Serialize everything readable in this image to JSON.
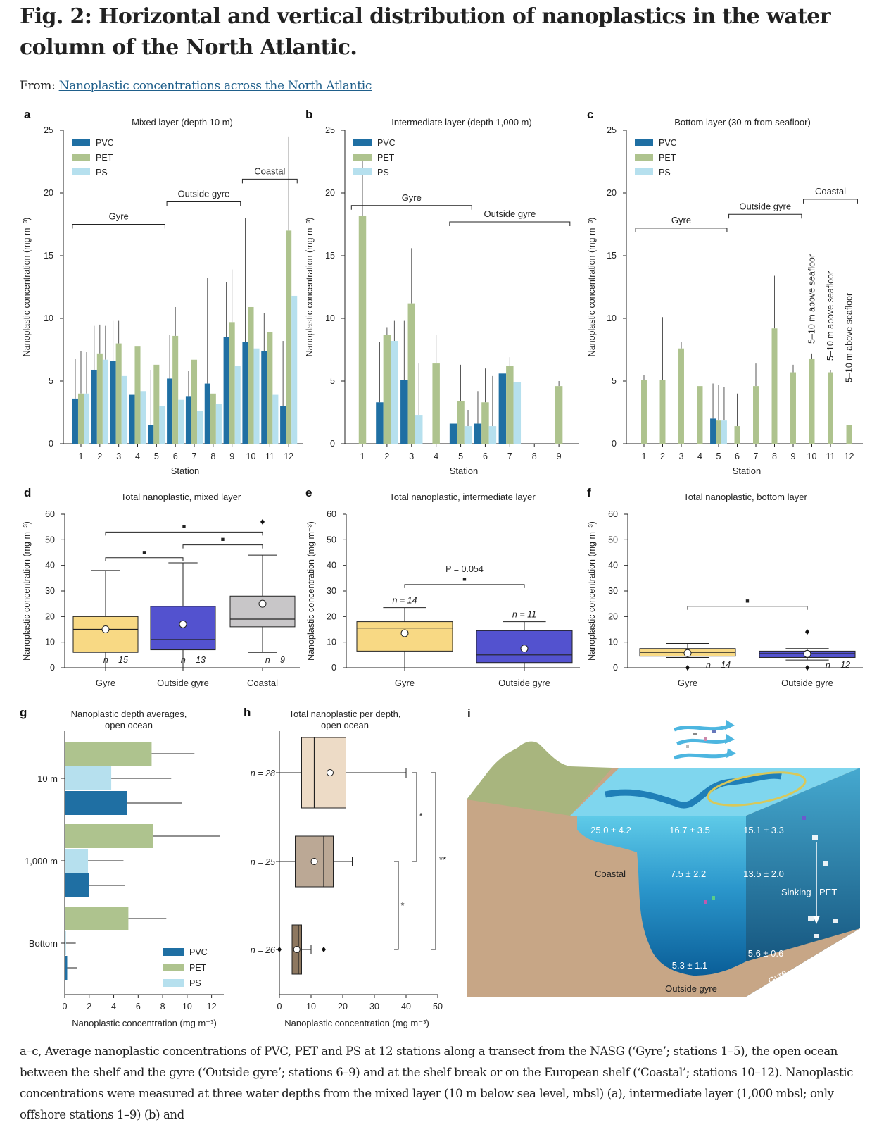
{
  "header": {
    "title": "Fig. 2: Horizontal and vertical distribution of nanoplastics in the water column of the North Atlantic.",
    "from_label": "From:",
    "from_link": "Nanoplastic concentrations across the North Atlantic"
  },
  "caption": "a–c, Average nanoplastic concentrations of PVC, PET and PS at 12 stations along a transect from the NASG (‘Gyre’; stations 1–5), the open ocean between the shelf and the gyre (‘Outside gyre’; stations 6–9) and at the shelf break or on the European shelf (‘Coastal’; stations 10–12). Nanoplastic concentrations were measured at three water depths from the mixed layer (10 m below sea level, mbsl) (a), intermediate layer (1,000 mbsl; only offshore stations 1–9) (b) and",
  "colors": {
    "PVC": "#1f6fa3",
    "PET": "#aec38e",
    "PS": "#b6e0ee"
  },
  "chart_data": [
    {
      "panel": "a",
      "type": "bar",
      "title": "Mixed layer (depth 10 m)",
      "xlabel": "Station",
      "ylabel": "Nanoplastic concentration (mg m⁻³)",
      "ylim": [
        0,
        25
      ],
      "yticks": [
        0,
        5,
        10,
        15,
        20,
        25
      ],
      "categories": [
        "1",
        "2",
        "3",
        "4",
        "5",
        "6",
        "7",
        "8",
        "9",
        "10",
        "11",
        "12"
      ],
      "legend": [
        "PVC",
        "PET",
        "PS"
      ],
      "series": [
        {
          "name": "PVC",
          "values": [
            3.6,
            5.9,
            6.6,
            3.9,
            1.5,
            5.2,
            3.8,
            4.8,
            8.5,
            8.1,
            7.4,
            3.0
          ],
          "error": [
            3.2,
            3.5,
            3.2,
            8.8,
            4.4,
            3.5,
            2.0,
            8.4,
            4.4,
            9.9,
            3.0,
            5.2
          ]
        },
        {
          "name": "PET",
          "values": [
            4.0,
            7.2,
            8.0,
            7.8,
            6.3,
            8.6,
            6.7,
            4.0,
            9.7,
            10.9,
            8.9,
            17.0
          ],
          "error": [
            3.4,
            2.3,
            1.8,
            0.0,
            0.0,
            2.3,
            0.0,
            0.0,
            4.2,
            8.1,
            0.0,
            7.5
          ]
        },
        {
          "name": "PS",
          "values": [
            4.0,
            6.7,
            5.4,
            4.2,
            3.0,
            3.5,
            2.6,
            3.2,
            6.2,
            7.6,
            3.9,
            11.8
          ],
          "error": [
            3.3,
            2.7,
            0.0,
            0.0,
            0.0,
            0.0,
            0.0,
            0.0,
            0.0,
            0.0,
            0.0,
            0.0
          ]
        }
      ],
      "brackets": [
        {
          "label": "Gyre",
          "y": 17.5,
          "from": "1",
          "to": "5"
        },
        {
          "label": "Outside gyre",
          "y": 19.3,
          "from": "6",
          "to": "9"
        },
        {
          "label": "Coastal",
          "y": 21.1,
          "from": "10",
          "to": "12"
        }
      ]
    },
    {
      "panel": "b",
      "type": "bar",
      "title": "Intermediate layer (depth 1,000 m)",
      "xlabel": "Station",
      "ylabel": "Nanoplastic concentration (mg m⁻³)",
      "ylim": [
        0,
        25
      ],
      "yticks": [
        0,
        5,
        10,
        15,
        20,
        25
      ],
      "categories": [
        "1",
        "2",
        "3",
        "4",
        "5",
        "6",
        "7",
        "8",
        "9"
      ],
      "legend": [
        "PVC",
        "PET",
        "PS"
      ],
      "series": [
        {
          "name": "PVC",
          "values": [
            0,
            3.3,
            5.1,
            0,
            1.6,
            1.6,
            5.6,
            0,
            0
          ],
          "error": [
            0,
            4.8,
            4.7,
            0,
            0,
            2.6,
            0,
            0,
            0
          ]
        },
        {
          "name": "PET",
          "values": [
            18.2,
            8.7,
            11.2,
            6.4,
            3.4,
            3.3,
            6.2,
            0,
            4.6
          ],
          "error": [
            4.8,
            0.6,
            4.4,
            2.3,
            2.9,
            2.7,
            0.7,
            0,
            0.4
          ]
        },
        {
          "name": "PS",
          "values": [
            0,
            8.2,
            2.3,
            0,
            1.4,
            1.4,
            4.9,
            0,
            0
          ],
          "error": [
            0,
            1.6,
            4.1,
            0,
            1.3,
            4.0,
            0,
            0,
            0
          ]
        }
      ],
      "brackets": [
        {
          "label": "Gyre",
          "y": 19.0,
          "from": "1",
          "to": "5"
        },
        {
          "label": "Outside gyre",
          "y": 17.7,
          "from": "5",
          "to": "9"
        }
      ]
    },
    {
      "panel": "c",
      "type": "bar",
      "title": "Bottom layer (30 m from seafloor)",
      "xlabel": "Station",
      "ylabel": "Nanoplastic concentration (mg m⁻³)",
      "ylim": [
        0,
        25
      ],
      "yticks": [
        0,
        5,
        10,
        15,
        20,
        25
      ],
      "categories": [
        "1",
        "2",
        "3",
        "4",
        "5",
        "6",
        "7",
        "8",
        "9",
        "10",
        "11",
        "12"
      ],
      "legend": [
        "PVC",
        "PET",
        "PS"
      ],
      "series": [
        {
          "name": "PVC",
          "values": [
            0,
            0,
            0,
            0,
            2.0,
            0,
            0,
            0,
            0,
            0,
            0,
            0
          ],
          "error": [
            0,
            0,
            0,
            0,
            2.8,
            0,
            0,
            0,
            0,
            0,
            0,
            0
          ]
        },
        {
          "name": "PET",
          "values": [
            5.1,
            5.1,
            7.6,
            4.6,
            1.9,
            1.4,
            4.6,
            9.2,
            5.7,
            6.8,
            5.7,
            1.5
          ],
          "error": [
            0.4,
            5.0,
            0.5,
            0.3,
            2.8,
            2.6,
            1.8,
            4.2,
            0.6,
            0.4,
            0.2,
            2.6
          ]
        },
        {
          "name": "PS",
          "values": [
            0,
            0,
            0,
            0,
            1.9,
            0,
            0,
            0,
            0,
            0,
            0,
            0
          ],
          "error": [
            0,
            0,
            0,
            0,
            2.6,
            0,
            0,
            0,
            0,
            0,
            0,
            0
          ]
        }
      ],
      "brackets": [
        {
          "label": "Gyre",
          "y": 17.2,
          "from": "1",
          "to": "5"
        },
        {
          "label": "Outside gyre",
          "y": 18.3,
          "from": "6",
          "to": "9"
        },
        {
          "label": "Coastal",
          "y": 19.5,
          "from": "10",
          "to": "12"
        }
      ],
      "annotations": [
        "5–10 m above seafloor",
        "5–10 m above seafloor",
        "5–10 m above seafloor"
      ]
    },
    {
      "panel": "d",
      "type": "box",
      "title": "Total nanoplastic, mixed layer",
      "ylabel": "Nanoplastic concentration (mg m⁻³)",
      "ylim": [
        0,
        60
      ],
      "yticks": [
        0,
        10,
        20,
        30,
        40,
        50,
        60
      ],
      "groups": [
        {
          "name": "Gyre",
          "n": "n = 15",
          "min": 0,
          "q1": 6,
          "median": 15,
          "q3": 20,
          "max": 38,
          "mean": 15,
          "outliers": [],
          "color": "#f8d984"
        },
        {
          "name": "Outside gyre",
          "n": "n = 13",
          "min": 0,
          "q1": 7,
          "median": 11,
          "q3": 24,
          "max": 41,
          "mean": 17,
          "outliers": [],
          "color": "#5352cf"
        },
        {
          "name": "Coastal",
          "n": "n = 9",
          "min": 6,
          "q1": 16,
          "median": 19,
          "q3": 28,
          "max": 44,
          "mean": 25,
          "outliers": [
            57
          ],
          "color": "#c8c6c8"
        }
      ],
      "significance": [
        {
          "from": "Gyre",
          "to": "Outside gyre",
          "y": 43,
          "label": "■"
        },
        {
          "from": "Outside gyre",
          "to": "Coastal",
          "y": 48,
          "label": "■"
        },
        {
          "from": "Gyre",
          "to": "Coastal",
          "y": 53,
          "label": "■"
        }
      ]
    },
    {
      "panel": "e",
      "type": "box",
      "title": "Total nanoplastic, intermediate layer",
      "ylabel": "Nanoplastic concentration (mg m⁻³)",
      "ylim": [
        0,
        60
      ],
      "yticks": [
        0,
        10,
        20,
        30,
        40,
        50,
        60
      ],
      "groups": [
        {
          "name": "Gyre",
          "n": "n = 14",
          "min": 0,
          "q1": 6.5,
          "median": 15.5,
          "q3": 18,
          "max": 23.5,
          "mean": 13.5,
          "outliers": [],
          "color": "#f8d984"
        },
        {
          "name": "Outside gyre",
          "n": "n = 11",
          "min": 0,
          "q1": 2,
          "median": 5,
          "q3": 14.5,
          "max": 18,
          "mean": 7.5,
          "outliers": [],
          "color": "#5352cf"
        }
      ],
      "significance": [
        {
          "from": "Gyre",
          "to": "Outside gyre",
          "y": 32.5,
          "label": "■",
          "note": "P = 0.054"
        }
      ]
    },
    {
      "panel": "f",
      "type": "box",
      "title": "Total nanoplastic, bottom layer",
      "ylabel": "Nanoplastic concentration (mg m⁻³)",
      "ylim": [
        0,
        60
      ],
      "yticks": [
        0,
        10,
        20,
        30,
        40,
        50,
        60
      ],
      "groups": [
        {
          "name": "Gyre",
          "n": "n = 14",
          "min": 4,
          "q1": 4.5,
          "median": 6,
          "q3": 7.5,
          "max": 9.5,
          "mean": 5.7,
          "outliers": [
            0
          ],
          "color": "#f8d984"
        },
        {
          "name": "Outside gyre",
          "n": "n = 12",
          "min": 3,
          "q1": 4,
          "median": 5.5,
          "q3": 6.5,
          "max": 7.5,
          "mean": 5.4,
          "outliers": [
            14,
            0
          ],
          "color": "#5352cf"
        }
      ],
      "significance": [
        {
          "from": "Gyre",
          "to": "Outside gyre",
          "y": 24,
          "label": "■"
        }
      ]
    },
    {
      "panel": "g",
      "type": "bar",
      "orientation": "horizontal",
      "title": "Nanoplastic depth averages, open ocean",
      "xlabel": "Nanoplastic concentration (mg m⁻³)",
      "xlim": [
        0,
        13
      ],
      "xticks": [
        0,
        2,
        4,
        6,
        8,
        10,
        12
      ],
      "categories": [
        "10 m",
        "1,000 m",
        "Bottom"
      ],
      "legend": [
        "PVC",
        "PET",
        "PS"
      ],
      "series": [
        {
          "name": "PET",
          "values": [
            7.1,
            7.2,
            5.2
          ],
          "error": [
            3.5,
            5.5,
            3.1
          ]
        },
        {
          "name": "PS",
          "values": [
            3.8,
            1.9,
            0.1
          ],
          "error": [
            4.9,
            2.9,
            0.8
          ]
        },
        {
          "name": "PVC",
          "values": [
            5.1,
            2.0,
            0.2
          ],
          "error": [
            4.5,
            2.9,
            0.8
          ]
        }
      ]
    },
    {
      "panel": "h",
      "type": "box",
      "orientation": "horizontal",
      "title": "Total nanoplastic per depth, open ocean",
      "xlabel": "Nanoplastic concentration (mg m⁻³)",
      "xlim": [
        0,
        50
      ],
      "xticks": [
        0,
        10,
        20,
        30,
        40,
        50
      ],
      "groups": [
        {
          "name": "n = 28",
          "min": 0,
          "q1": 7,
          "median": 11,
          "q3": 21,
          "max": 40,
          "mean": 16,
          "outliers": [],
          "color": "#eddbc6"
        },
        {
          "name": "n = 25",
          "min": 0,
          "q1": 5,
          "median": 14,
          "q3": 17,
          "max": 23,
          "mean": 11,
          "outliers": [],
          "color": "#bba895"
        },
        {
          "name": "n = 26",
          "min": 4,
          "q1": 4,
          "median": 6,
          "q3": 7,
          "max": 10,
          "mean": 5.5,
          "outliers": [
            0,
            14
          ],
          "color": "#8e7860"
        }
      ],
      "significance": [
        {
          "pair": [
            "n = 28",
            "n = 25"
          ],
          "label": "*"
        },
        {
          "pair": [
            "n = 25",
            "n = 26"
          ],
          "label": "*"
        },
        {
          "pair": [
            "n = 28",
            "n = 26"
          ],
          "label": "**"
        }
      ]
    }
  ],
  "panel_i": {
    "labels": {
      "v1": "25.0 ± 4.2",
      "v2": "16.7 ± 3.5",
      "v3": "15.1 ± 3.3",
      "v4": "7.5 ± 2.2",
      "v5": "13.5 ± 2.0",
      "v6": "5.6 ± 0.6",
      "v7": "5.3 ± 1.1",
      "coastal": "Coastal",
      "sinking": "Sinking",
      "pet": "PET",
      "outside": "Outside gyre",
      "gyre": "Gyre"
    }
  }
}
